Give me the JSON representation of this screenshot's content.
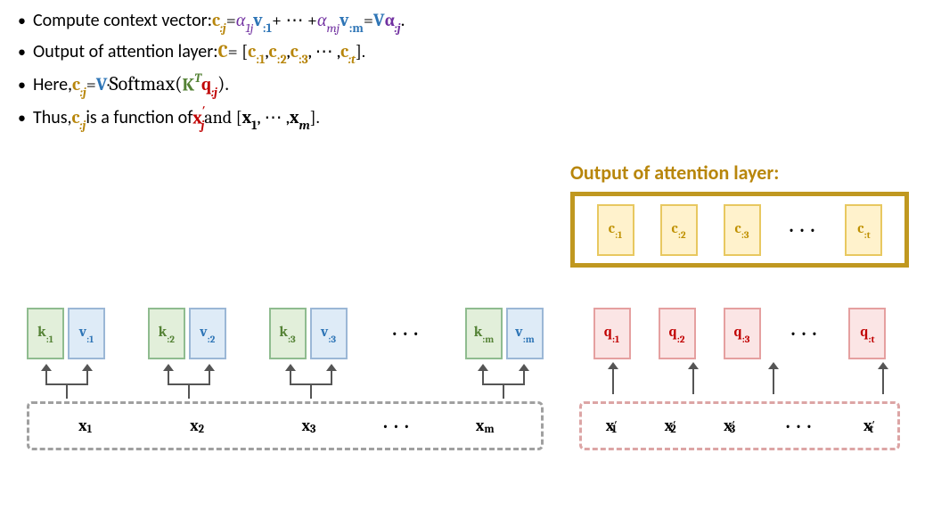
{
  "colors": {
    "gold": "#b8860b",
    "purple": "#7030a0",
    "blue": "#2e75b6",
    "green": "#548235",
    "red": "#c00000",
    "black": "#000000",
    "grey": "#888888",
    "box_gold_border": "#c09820",
    "box_gold_fill": "#fdf2cc",
    "tile_yellow_border": "#e8c860",
    "tile_yellow_fill": "#fff2cc",
    "tile_green_border": "#8fbc8f",
    "tile_green_fill": "#e2efda",
    "tile_blue_border": "#9bb7d6",
    "tile_blue_fill": "#deebf7",
    "tile_red_border": "#e5a0a0",
    "tile_red_fill": "#fbe5e5",
    "dashed_grey": "#a0a0a0",
    "dashed_red": "#dca5a5",
    "text_yellow": "#bf9000",
    "text_green": "#548235",
    "text_blue": "#2e75b6",
    "text_red": "#c00000"
  },
  "bullets": {
    "b1": {
      "label": "Compute context vector:   ",
      "c_sym": "c",
      "c_sub": ":j",
      "eq": " = ",
      "a1": "α",
      "a1_sub": "1j",
      "v1": "v",
      "v1_sub": ":1",
      "plus_dots": " + ⋯ + ",
      "am": "α",
      "am_sub": "mj",
      "vm": "v",
      "vm_sub": ":m",
      "eq2": "  =  ",
      "V": "V",
      "alpha": "α",
      "alpha_sub": ":j",
      "dot": "."
    },
    "b2": {
      "label": "Output of attention layer:   ",
      "C": "C",
      "eq": " = [",
      "c1": "c",
      "c1_sub": ":1",
      "comma1": ", ",
      "c2": "c",
      "c2_sub": ":2",
      "comma2": ", ",
      "c3": "c",
      "c3_sub": ":3",
      "comma3": ", ⋯ , ",
      "ct": "c",
      "ct_sub": ":t",
      "close": "]."
    },
    "b3": {
      "label": "Here,  ",
      "c": "c",
      "c_sub": ":j",
      "eq": " = ",
      "V": "V",
      "dot": " · ",
      "softmax": "Softmax(",
      "K": "K",
      "Ksup": "T",
      "q": "q",
      "q_sub": ":j",
      "close": ")."
    },
    "b4": {
      "label": "Thus, ",
      "c": "c",
      "c_sub": ":j",
      "mid": "  is a function of  ",
      "xj": "x",
      "xj_sup": "′",
      "xj_sub": "j",
      "and": "  and [",
      "x1": "x",
      "x1_sub": "1",
      "dots": ", ⋯ , ",
      "xm": "x",
      "xm_sub": "m",
      "close": "]."
    }
  },
  "diagram": {
    "out_title": "Output of attention layer:",
    "c_tiles": [
      {
        "sym": "c",
        "sub": ":1"
      },
      {
        "sym": "c",
        "sub": ":2"
      },
      {
        "sym": "c",
        "sub": ":3"
      },
      {
        "sym": "c",
        "sub": ":t"
      }
    ],
    "q_tiles": [
      {
        "sym": "q",
        "sub": ":1"
      },
      {
        "sym": "q",
        "sub": ":2"
      },
      {
        "sym": "q",
        "sub": ":3"
      },
      {
        "sym": "q",
        "sub": ":t"
      }
    ],
    "kv_pairs": [
      {
        "k_sub": ":1",
        "v_sub": ":1"
      },
      {
        "k_sub": ":2",
        "v_sub": ":2"
      },
      {
        "k_sub": ":3",
        "v_sub": ":3"
      },
      {
        "k_sub": ":m",
        "v_sub": ":m"
      }
    ],
    "k_sym": "k",
    "v_sym": "v",
    "x_left": [
      {
        "sym": "x",
        "sub": "1"
      },
      {
        "sym": "x",
        "sub": "2"
      },
      {
        "sym": "x",
        "sub": "3"
      },
      {
        "sym": "x",
        "sub": "m"
      }
    ],
    "x_right": [
      {
        "sym": "x",
        "sup": "′",
        "sub": "1"
      },
      {
        "sym": "x",
        "sup": "′",
        "sub": "2"
      },
      {
        "sym": "x",
        "sup": "′",
        "sub": "3"
      },
      {
        "sym": "x",
        "sup": "′",
        "sub": "t"
      }
    ],
    "dots": "· · ·"
  }
}
